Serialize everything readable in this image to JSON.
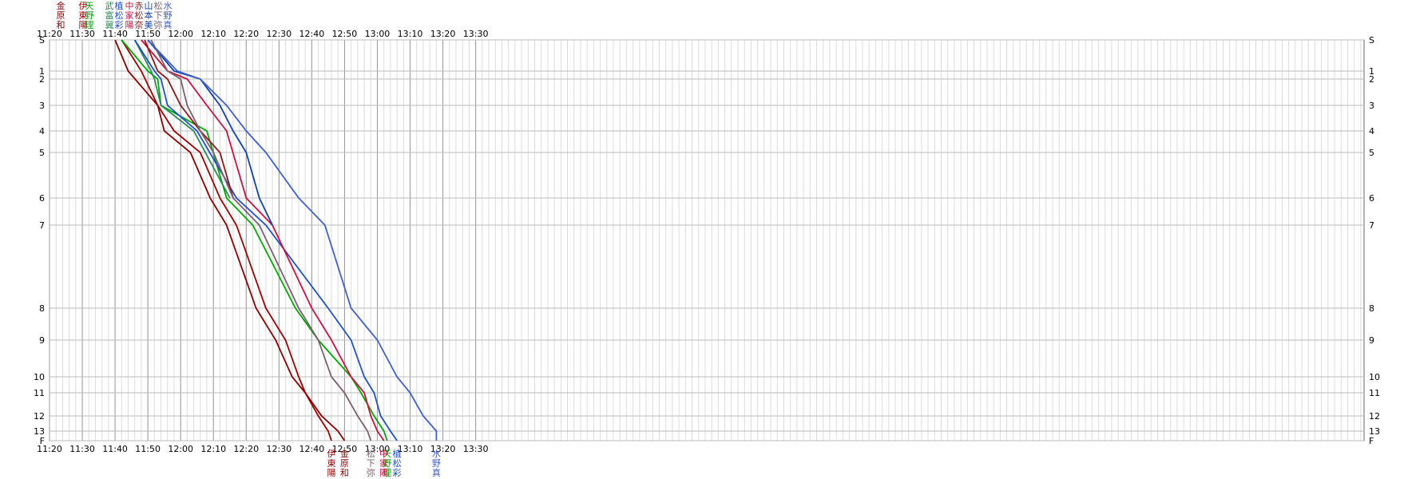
{
  "chart_data": {
    "type": "line",
    "title": "",
    "xlabel": "",
    "ylabel": "",
    "x_range_minutes": [
      660,
      1061
    ],
    "x_ticks": [
      "11:20",
      "11:30",
      "11:40",
      "11:50",
      "12:00",
      "12:10",
      "12:20",
      "12:30",
      "12:40",
      "12:50",
      "13:00",
      "13:10",
      "13:20",
      "13:30"
    ],
    "y_levels": [
      {
        "label": "S",
        "y": 0
      },
      {
        "label": "1",
        "y": 1
      },
      {
        "label": "2",
        "y": 2
      },
      {
        "label": "3",
        "y": 3
      },
      {
        "label": "4",
        "y": 4
      },
      {
        "label": "5",
        "y": 5
      },
      {
        "label": "6",
        "y": 6
      },
      {
        "label": "7",
        "y": 7
      },
      {
        "label": "8",
        "y": 8
      },
      {
        "label": "9",
        "y": 9
      },
      {
        "label": "10",
        "y": 10
      },
      {
        "label": "11",
        "y": 11
      },
      {
        "label": "12",
        "y": 12
      },
      {
        "label": "13",
        "y": 13
      },
      {
        "label": "F",
        "y": 14
      }
    ],
    "grid": true,
    "series": [
      {
        "name": "金原和",
        "color": "#8b0000",
        "start": "top",
        "end": "bottom",
        "points": [
          [
            680,
            0
          ],
          [
            684,
            1
          ],
          [
            693,
            3
          ],
          [
            695,
            4
          ],
          [
            703,
            5
          ],
          [
            709,
            6
          ],
          [
            714,
            7
          ],
          [
            723,
            8
          ],
          [
            729,
            9
          ],
          [
            734,
            10
          ],
          [
            738,
            11
          ],
          [
            743,
            12
          ],
          [
            748,
            13
          ],
          [
            750,
            14
          ]
        ]
      },
      {
        "name": "伊東陽",
        "color": "#a00000",
        "start": "top",
        "end": "bottom",
        "points": [
          [
            682,
            0
          ],
          [
            688,
            1
          ],
          [
            693,
            3
          ],
          [
            698,
            4
          ],
          [
            706,
            5
          ],
          [
            712,
            6
          ],
          [
            717,
            7
          ],
          [
            726,
            8
          ],
          [
            732,
            9
          ],
          [
            736,
            10
          ],
          [
            738,
            11
          ],
          [
            742,
            12
          ],
          [
            745,
            13
          ],
          [
            746,
            14
          ]
        ]
      },
      {
        "name": "天野理",
        "color": "#00aa00",
        "start": "top",
        "end": "bottom",
        "points": [
          [
            682,
            0
          ],
          [
            690,
            1
          ],
          [
            693,
            2
          ],
          [
            694,
            3
          ],
          [
            708,
            4
          ],
          [
            714,
            6
          ],
          [
            722,
            7
          ],
          [
            735,
            8
          ],
          [
            742,
            9
          ],
          [
            752,
            10
          ],
          [
            755,
            11
          ],
          [
            759,
            12
          ],
          [
            762,
            13
          ],
          [
            763,
            14
          ]
        ]
      },
      {
        "name": "武富冀",
        "color": "#2e8b57",
        "start": "top",
        "end": "bottom",
        "points": [
          [
            686,
            0
          ],
          [
            691,
            1
          ],
          [
            692,
            2
          ],
          [
            694,
            3
          ],
          [
            704,
            4
          ],
          [
            715,
            6
          ]
        ]
      },
      {
        "name": "植松彩",
        "color": "#2050c8",
        "start": "top",
        "end": "bottom",
        "points": [
          [
            686,
            0
          ],
          [
            692,
            1
          ],
          [
            694,
            2
          ],
          [
            696,
            3
          ],
          [
            705,
            4
          ],
          [
            717,
            6
          ],
          [
            726,
            7
          ],
          [
            745,
            8
          ],
          [
            752,
            9
          ],
          [
            756,
            10
          ],
          [
            759,
            11
          ],
          [
            761,
            12
          ],
          [
            764,
            13
          ],
          [
            766,
            14
          ]
        ]
      },
      {
        "name": "中家陽",
        "color": "#cc1040",
        "start": "top",
        "end": "bottom",
        "points": [
          [
            688,
            0
          ],
          [
            696,
            1
          ],
          [
            702,
            2
          ],
          [
            708,
            3
          ],
          [
            714,
            4
          ],
          [
            720,
            6
          ],
          [
            728,
            7
          ],
          [
            740,
            8
          ],
          [
            746,
            9
          ],
          [
            752,
            10
          ],
          [
            756,
            11
          ],
          [
            758,
            12
          ],
          [
            760,
            13
          ],
          [
            762,
            14
          ]
        ]
      },
      {
        "name": "赤松奈",
        "color": "#8b1a1a",
        "start": "top",
        "end": "bottom",
        "points": [
          [
            689,
            0
          ],
          [
            693,
            1
          ],
          [
            696,
            2
          ],
          [
            700,
            3
          ],
          [
            706,
            4
          ],
          [
            712,
            5
          ],
          [
            716,
            6
          ]
        ]
      },
      {
        "name": "山本美",
        "color": "#1040b0",
        "start": "top",
        "end": "bottom",
        "points": [
          [
            690,
            0
          ],
          [
            698,
            1
          ],
          [
            706,
            2
          ],
          [
            712,
            3
          ],
          [
            716,
            4
          ],
          [
            720,
            5
          ],
          [
            724,
            6
          ],
          [
            728,
            7
          ]
        ]
      },
      {
        "name": "松下弥",
        "color": "#7a6070",
        "start": "top",
        "end": "bottom",
        "points": [
          [
            691,
            0
          ],
          [
            696,
            1
          ],
          [
            700,
            2
          ],
          [
            702,
            3
          ],
          [
            706,
            4
          ],
          [
            710,
            5
          ],
          [
            716,
            6
          ],
          [
            724,
            7
          ],
          [
            736,
            8
          ],
          [
            742,
            9
          ],
          [
            746,
            10
          ],
          [
            750,
            11
          ],
          [
            754,
            12
          ],
          [
            757,
            13
          ],
          [
            758,
            14
          ]
        ]
      },
      {
        "name": "水野真",
        "color": "#4060c8",
        "start": "top",
        "end": "bottom",
        "points": [
          [
            690,
            0
          ],
          [
            699,
            1
          ],
          [
            706,
            2
          ],
          [
            714,
            3
          ],
          [
            720,
            4
          ],
          [
            726,
            5
          ],
          [
            736,
            6
          ],
          [
            744,
            7
          ],
          [
            752,
            8
          ],
          [
            760,
            9
          ],
          [
            766,
            10
          ],
          [
            770,
            11
          ],
          [
            774,
            12
          ],
          [
            778,
            13
          ],
          [
            778,
            14
          ]
        ]
      }
    ],
    "bottom_labels": [
      {
        "name": "伊東陽",
        "color": "#a00000"
      },
      {
        "name": "金原和",
        "color": "#8b0000"
      },
      {
        "name": "天野理",
        "color": "#00aa00"
      },
      {
        "name": "松下弥",
        "color": "#7a6070"
      },
      {
        "name": "中家陽",
        "color": "#cc1040"
      },
      {
        "name": "水野真",
        "color": "#4060c8"
      },
      {
        "name": "植松彩",
        "color": "#2050c8"
      }
    ]
  }
}
